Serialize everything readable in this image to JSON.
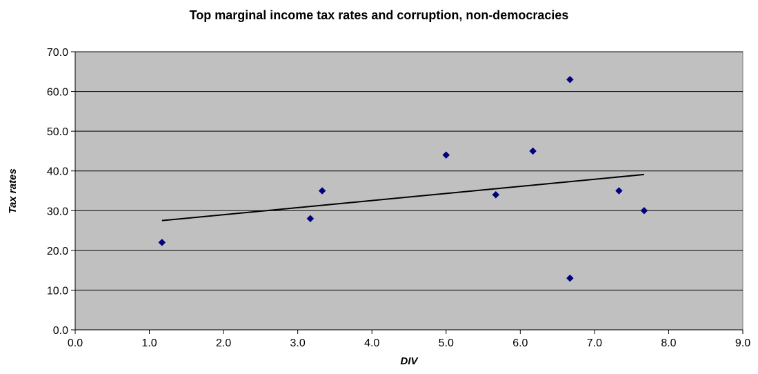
{
  "chart_data": {
    "type": "scatter",
    "title": "Top marginal income tax rates and corruption, non-democracies",
    "xlabel": "DIV",
    "ylabel": "Tax rates",
    "xlim": [
      0,
      9
    ],
    "ylim": [
      0,
      70
    ],
    "x_ticks": [
      "0.0",
      "1.0",
      "2.0",
      "3.0",
      "4.0",
      "5.0",
      "6.0",
      "7.0",
      "8.0",
      "9.0"
    ],
    "y_ticks": [
      "0.0",
      "10.0",
      "20.0",
      "30.0",
      "40.0",
      "50.0",
      "60.0",
      "70.0"
    ],
    "grid": "horizontal",
    "plot_background": "#c0c0c0",
    "marker_color": "#000080",
    "trendline_color": "#000000",
    "points": [
      {
        "x": 1.17,
        "y": 22
      },
      {
        "x": 3.17,
        "y": 28
      },
      {
        "x": 3.33,
        "y": 35
      },
      {
        "x": 5.0,
        "y": 44
      },
      {
        "x": 5.67,
        "y": 34
      },
      {
        "x": 6.17,
        "y": 45
      },
      {
        "x": 6.67,
        "y": 63
      },
      {
        "x": 6.67,
        "y": 13
      },
      {
        "x": 7.33,
        "y": 35
      },
      {
        "x": 7.67,
        "y": 30
      }
    ],
    "trendline": {
      "x": [
        1.17,
        7.67
      ],
      "y": [
        27.5,
        39.1
      ]
    }
  }
}
